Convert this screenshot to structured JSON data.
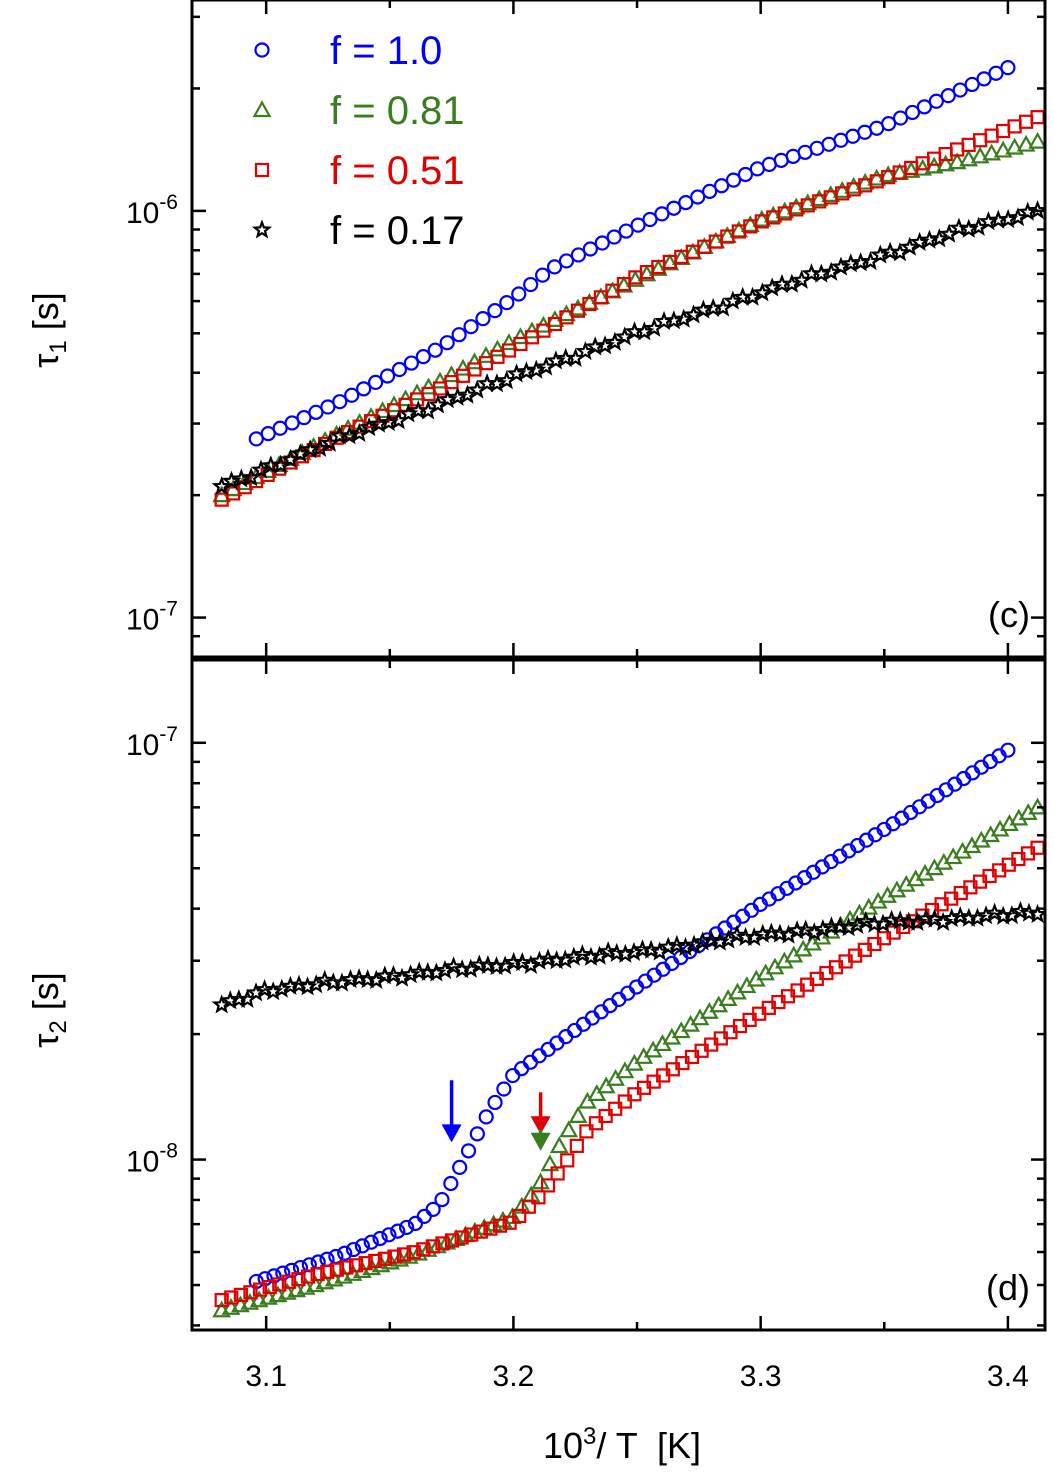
{
  "colors": {
    "f1": "#0000ff",
    "f081": "#3a7d1e",
    "f051": "#e00000",
    "f017": "#000000"
  },
  "legend": [
    {
      "label": "f = 1.0",
      "marker": "circle",
      "color": "#0000ff"
    },
    {
      "label": "f = 0.81",
      "marker": "triangle",
      "color": "#3a7d1e"
    },
    {
      "label": "f = 0.51",
      "marker": "square",
      "color": "#e00000"
    },
    {
      "label": "f = 0.17",
      "marker": "star",
      "color": "#000000"
    }
  ],
  "chart_data": [
    {
      "type": "scatter",
      "panel": "(c)",
      "ylabel_main": "τ",
      "ylabel_sub": "1",
      "ylabel_unit": "[s]",
      "yscale": "log",
      "ylim": [
        8e-08,
        3.3e-06
      ],
      "xlim": [
        3.07,
        3.415
      ],
      "y_ticks": [
        {
          "value": 1e-06,
          "base": "10",
          "exp": "-6"
        },
        {
          "value": 1e-07,
          "base": "10",
          "exp": "-7"
        }
      ],
      "series": [
        {
          "name": "f = 1.0",
          "marker": "circle",
          "color": "#0000ff",
          "x_start": 3.096,
          "x_end": 3.4,
          "n": 64,
          "knots": [
            [
              3.096,
              2.75e-07
            ],
            [
              3.13,
              3.4e-07
            ],
            [
              3.17,
              4.6e-07
            ],
            [
              3.2,
              6.1e-07
            ],
            [
              3.215,
              7.2e-07
            ],
            [
              3.25,
              9.2e-07
            ],
            [
              3.3,
              1.28e-06
            ],
            [
              3.35,
              1.62e-06
            ],
            [
              3.4,
              2.25e-06
            ]
          ]
        },
        {
          "name": "f = 0.81",
          "marker": "triangle",
          "color": "#3a7d1e",
          "x_start": 3.082,
          "x_end": 3.412,
          "n": 72,
          "knots": [
            [
              3.082,
              2e-07
            ],
            [
              3.13,
              2.85e-07
            ],
            [
              3.17,
              3.8e-07
            ],
            [
              3.2,
              4.8e-07
            ],
            [
              3.25,
              6.8e-07
            ],
            [
              3.3,
              9.5e-07
            ],
            [
              3.35,
              1.22e-06
            ],
            [
              3.38,
              1.32e-06
            ],
            [
              3.412,
              1.48e-06
            ]
          ]
        },
        {
          "name": "f = 0.51",
          "marker": "square",
          "color": "#e00000",
          "x_start": 3.082,
          "x_end": 3.412,
          "n": 72,
          "knots": [
            [
              3.082,
              1.95e-07
            ],
            [
              3.13,
              2.8e-07
            ],
            [
              3.17,
              3.65e-07
            ],
            [
              3.2,
              4.6e-07
            ],
            [
              3.25,
              6.9e-07
            ],
            [
              3.3,
              9.4e-07
            ],
            [
              3.35,
              1.2e-06
            ],
            [
              3.38,
              1.42e-06
            ],
            [
              3.412,
              1.7e-06
            ]
          ]
        },
        {
          "name": "f = 0.17",
          "marker": "star",
          "color": "#000000",
          "x_start": 3.082,
          "x_end": 3.412,
          "n": 84,
          "knots": [
            [
              3.082,
              2.1e-07
            ],
            [
              3.13,
              2.75e-07
            ],
            [
              3.17,
              3.35e-07
            ],
            [
              3.2,
              3.9e-07
            ],
            [
              3.25,
              5e-07
            ],
            [
              3.3,
              6.3e-07
            ],
            [
              3.35,
              7.8e-07
            ],
            [
              3.38,
              8.9e-07
            ],
            [
              3.412,
              1e-06
            ]
          ]
        }
      ]
    },
    {
      "type": "scatter",
      "panel": "(d)",
      "ylabel_main": "τ",
      "ylabel_sub": "2",
      "ylabel_unit": "[s]",
      "yscale": "log",
      "ylim": [
        3.9e-09,
        1.58e-07
      ],
      "xlim": [
        3.07,
        3.415
      ],
      "xlabel_base": "10",
      "xlabel_exp": "3",
      "xlabel_rest": "/ T  [K]",
      "x_ticks": [
        {
          "value": 3.1,
          "label": "3.1"
        },
        {
          "value": 3.2,
          "label": "3.2"
        },
        {
          "value": 3.3,
          "label": "3.3"
        },
        {
          "value": 3.4,
          "label": "3.4"
        }
      ],
      "y_ticks": [
        {
          "value": 1e-07,
          "base": "10",
          "exp": "-7"
        },
        {
          "value": 1e-08,
          "base": "10",
          "exp": "-8"
        }
      ],
      "arrows": [
        {
          "x": 3.175,
          "y_top": 1.55e-08,
          "y_tip": 1.1e-08,
          "color": "#0000ff"
        },
        {
          "x": 3.211,
          "y_top": 1.45e-08,
          "y_tip": 1.15e-08,
          "color": "#e00000"
        },
        {
          "x": 3.211,
          "y_top": 1.18e-08,
          "y_tip": 1.05e-08,
          "color": "#3a7d1e"
        }
      ],
      "series": [
        {
          "name": "f = 1.0",
          "marker": "circle",
          "color": "#0000ff",
          "x_start": 3.096,
          "x_end": 3.4,
          "n": 86,
          "knots": [
            [
              3.096,
              5.1e-09
            ],
            [
              3.13,
              5.9e-09
            ],
            [
              3.16,
              7e-09
            ],
            [
              3.17,
              7.8e-09
            ],
            [
              3.18,
              1e-08
            ],
            [
              3.19,
              1.3e-08
            ],
            [
              3.2,
              1.6e-08
            ],
            [
              3.22,
              1.95e-08
            ],
            [
              3.25,
              2.6e-08
            ],
            [
              3.3,
              4.1e-08
            ],
            [
              3.35,
              6.2e-08
            ],
            [
              3.4,
              9.6e-08
            ]
          ]
        },
        {
          "name": "f = 0.81",
          "marker": "triangle",
          "color": "#3a7d1e",
          "x_start": 3.082,
          "x_end": 3.412,
          "n": 88,
          "knots": [
            [
              3.082,
              4.35e-09
            ],
            [
              3.12,
              5e-09
            ],
            [
              3.16,
              5.9e-09
            ],
            [
              3.2,
              7.3e-09
            ],
            [
              3.21,
              8.6e-09
            ],
            [
              3.22,
              1.12e-08
            ],
            [
              3.23,
              1.38e-08
            ],
            [
              3.25,
              1.72e-08
            ],
            [
              3.3,
              2.75e-08
            ],
            [
              3.35,
              4.25e-08
            ],
            [
              3.412,
              7e-08
            ]
          ]
        },
        {
          "name": "f = 0.51",
          "marker": "square",
          "color": "#e00000",
          "x_start": 3.082,
          "x_end": 3.412,
          "n": 86,
          "knots": [
            [
              3.082,
              4.6e-09
            ],
            [
              3.12,
              5.3e-09
            ],
            [
              3.16,
              6e-09
            ],
            [
              3.2,
              7.1e-09
            ],
            [
              3.21,
              8.1e-09
            ],
            [
              3.22,
              9.6e-09
            ],
            [
              3.23,
              1.18e-08
            ],
            [
              3.25,
              1.45e-08
            ],
            [
              3.3,
              2.25e-08
            ],
            [
              3.35,
              3.4e-08
            ],
            [
              3.412,
              5.6e-08
            ]
          ]
        },
        {
          "name": "f = 0.17",
          "marker": "star",
          "color": "#000000",
          "x_start": 3.082,
          "x_end": 3.412,
          "n": 96,
          "knots": [
            [
              3.082,
              2.35e-08
            ],
            [
              3.1,
              2.55e-08
            ],
            [
              3.15,
              2.75e-08
            ],
            [
              3.2,
              2.95e-08
            ],
            [
              3.25,
              3.15e-08
            ],
            [
              3.3,
              3.45e-08
            ],
            [
              3.35,
              3.7e-08
            ],
            [
              3.412,
              3.9e-08
            ]
          ]
        }
      ]
    }
  ]
}
